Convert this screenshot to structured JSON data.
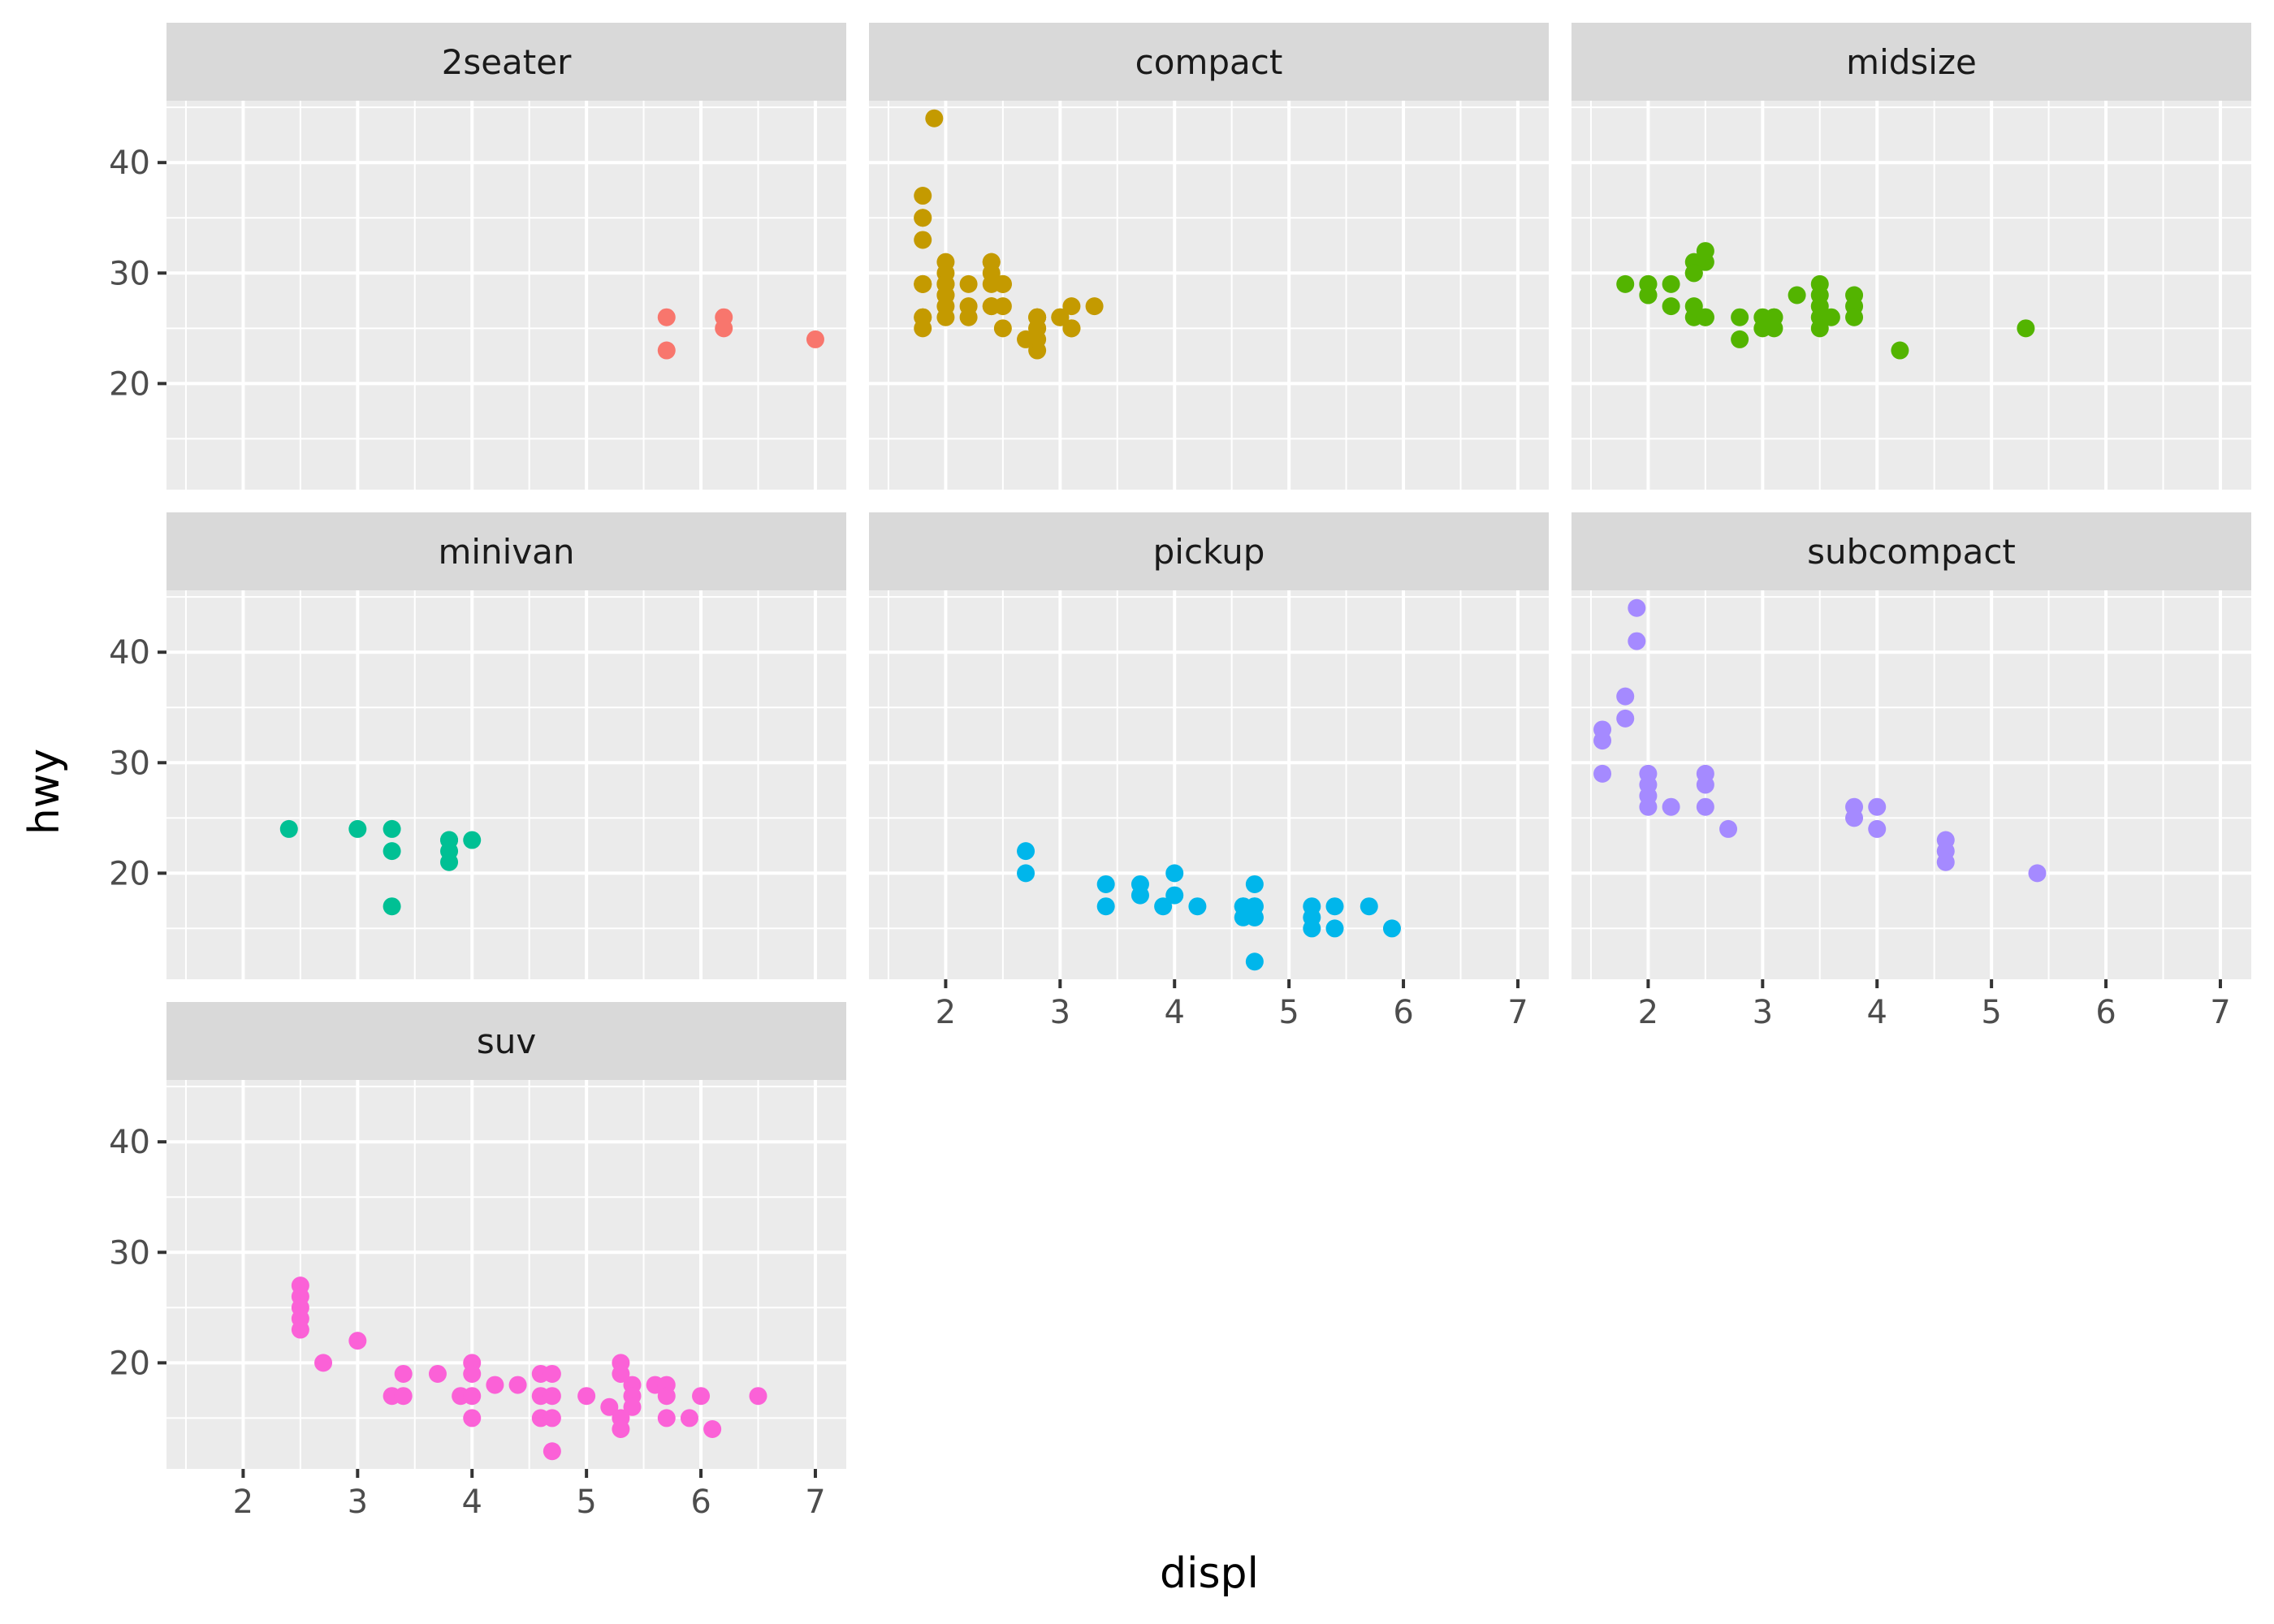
{
  "chart_data": {
    "type": "scatter",
    "title": "",
    "xlabel": "displ",
    "ylabel": "hwy",
    "facet_by": "class",
    "layout": "facet_wrap 3 columns",
    "grid": true,
    "legend": "none",
    "xlim": [
      1.33,
      7.27
    ],
    "ylim": [
      10.4,
      45.6
    ],
    "x_ticks": [
      2,
      3,
      4,
      5,
      6,
      7
    ],
    "y_ticks": [
      20,
      30,
      40
    ],
    "x_tick_labels": [
      "2",
      "3",
      "4",
      "5",
      "6",
      "7"
    ],
    "y_tick_labels": [
      "20",
      "30",
      "40"
    ],
    "panels": [
      {
        "label": "2seater",
        "color": "#F8766D",
        "points": [
          [
            5.7,
            26
          ],
          [
            5.7,
            23
          ],
          [
            6.2,
            26
          ],
          [
            6.2,
            25
          ],
          [
            7.0,
            24
          ]
        ]
      },
      {
        "label": "compact",
        "color": "#C49A00",
        "points": [
          [
            1.8,
            29
          ],
          [
            1.8,
            29
          ],
          [
            2.0,
            31
          ],
          [
            2.0,
            30
          ],
          [
            2.8,
            26
          ],
          [
            2.8,
            26
          ],
          [
            3.1,
            27
          ],
          [
            1.8,
            26
          ],
          [
            1.8,
            25
          ],
          [
            2.0,
            28
          ],
          [
            2.0,
            27
          ],
          [
            2.8,
            25
          ],
          [
            2.8,
            25
          ],
          [
            3.1,
            25
          ],
          [
            3.1,
            25
          ],
          [
            2.2,
            26
          ],
          [
            2.2,
            27
          ],
          [
            2.4,
            31
          ],
          [
            2.4,
            31
          ],
          [
            3.0,
            26
          ],
          [
            3.3,
            27
          ],
          [
            1.8,
            33
          ],
          [
            1.8,
            35
          ],
          [
            1.8,
            37
          ],
          [
            1.8,
            35
          ],
          [
            1.8,
            29
          ],
          [
            1.9,
            44
          ],
          [
            2.0,
            29
          ],
          [
            2.0,
            26
          ],
          [
            2.0,
            29
          ],
          [
            2.0,
            29
          ],
          [
            2.5,
            29
          ],
          [
            2.5,
            29
          ],
          [
            2.8,
            23
          ],
          [
            2.8,
            24
          ],
          [
            2.5,
            27
          ],
          [
            2.5,
            25
          ],
          [
            2.4,
            27
          ],
          [
            2.7,
            24
          ],
          [
            2.4,
            30
          ],
          [
            2.2,
            29
          ],
          [
            2.0,
            28
          ],
          [
            2.8,
            26
          ],
          [
            3.0,
            26
          ],
          [
            2.5,
            29
          ],
          [
            2.4,
            29
          ],
          [
            2.4,
            27
          ],
          [
            1.8,
            26
          ]
        ]
      },
      {
        "label": "midsize",
        "color": "#53B400",
        "points": [
          [
            1.8,
            29
          ],
          [
            2.0,
            28
          ],
          [
            2.0,
            29
          ],
          [
            2.2,
            29
          ],
          [
            2.4,
            30
          ],
          [
            2.4,
            31
          ],
          [
            2.5,
            31
          ],
          [
            2.5,
            32
          ],
          [
            2.2,
            27
          ],
          [
            2.4,
            26
          ],
          [
            2.4,
            27
          ],
          [
            2.5,
            26
          ],
          [
            2.5,
            26
          ],
          [
            2.8,
            26
          ],
          [
            2.8,
            24
          ],
          [
            3.0,
            26
          ],
          [
            3.0,
            25
          ],
          [
            3.1,
            26
          ],
          [
            3.1,
            25
          ],
          [
            3.1,
            26
          ],
          [
            3.3,
            28
          ],
          [
            3.5,
            29
          ],
          [
            3.5,
            28
          ],
          [
            3.5,
            27
          ],
          [
            3.5,
            26
          ],
          [
            3.5,
            25
          ],
          [
            3.6,
            26
          ],
          [
            3.8,
            28
          ],
          [
            3.8,
            27
          ],
          [
            3.8,
            26
          ],
          [
            4.2,
            23
          ],
          [
            5.3,
            25
          ],
          [
            2.0,
            29
          ],
          [
            2.0,
            28
          ],
          [
            2.4,
            30
          ]
        ]
      },
      {
        "label": "minivan",
        "color": "#00C094",
        "points": [
          [
            2.4,
            24
          ],
          [
            3.0,
            24
          ],
          [
            3.3,
            22
          ],
          [
            3.3,
            24
          ],
          [
            3.3,
            17
          ],
          [
            3.8,
            22
          ],
          [
            3.8,
            21
          ],
          [
            3.8,
            23
          ],
          [
            3.8,
            23
          ],
          [
            4.0,
            23
          ]
        ]
      },
      {
        "label": "pickup",
        "color": "#00B6EB",
        "points": [
          [
            2.7,
            20
          ],
          [
            2.7,
            22
          ],
          [
            3.4,
            17
          ],
          [
            3.4,
            19
          ],
          [
            3.7,
            18
          ],
          [
            3.7,
            19
          ],
          [
            3.9,
            17
          ],
          [
            4.0,
            20
          ],
          [
            4.0,
            18
          ],
          [
            4.2,
            17
          ],
          [
            4.6,
            17
          ],
          [
            4.6,
            16
          ],
          [
            4.6,
            17
          ],
          [
            4.7,
            12
          ],
          [
            4.7,
            17
          ],
          [
            4.7,
            16
          ],
          [
            4.7,
            19
          ],
          [
            4.7,
            16
          ],
          [
            4.7,
            17
          ],
          [
            5.2,
            15
          ],
          [
            5.2,
            16
          ],
          [
            5.2,
            17
          ],
          [
            5.4,
            15
          ],
          [
            5.4,
            17
          ],
          [
            5.7,
            17
          ],
          [
            5.9,
            15
          ]
        ]
      },
      {
        "label": "subcompact",
        "color": "#A58AFF",
        "points": [
          [
            1.6,
            33
          ],
          [
            1.6,
            32
          ],
          [
            1.6,
            29
          ],
          [
            1.8,
            34
          ],
          [
            1.8,
            36
          ],
          [
            1.9,
            44
          ],
          [
            1.9,
            41
          ],
          [
            2.0,
            29
          ],
          [
            2.0,
            28
          ],
          [
            2.0,
            27
          ],
          [
            2.0,
            26
          ],
          [
            2.2,
            26
          ],
          [
            2.5,
            29
          ],
          [
            2.5,
            28
          ],
          [
            2.5,
            26
          ],
          [
            2.7,
            24
          ],
          [
            3.8,
            26
          ],
          [
            3.8,
            25
          ],
          [
            4.0,
            26
          ],
          [
            4.0,
            24
          ],
          [
            4.6,
            23
          ],
          [
            4.6,
            22
          ],
          [
            4.6,
            21
          ],
          [
            5.4,
            20
          ]
        ]
      },
      {
        "label": "suv",
        "color": "#FB61D7",
        "points": [
          [
            2.5,
            27
          ],
          [
            2.5,
            26
          ],
          [
            2.5,
            25
          ],
          [
            2.5,
            24
          ],
          [
            2.5,
            23
          ],
          [
            2.7,
            20
          ],
          [
            3.0,
            22
          ],
          [
            3.3,
            17
          ],
          [
            3.4,
            17
          ],
          [
            3.4,
            19
          ],
          [
            3.7,
            19
          ],
          [
            3.9,
            17
          ],
          [
            4.0,
            20
          ],
          [
            4.0,
            19
          ],
          [
            4.0,
            17
          ],
          [
            4.0,
            15
          ],
          [
            4.2,
            18
          ],
          [
            4.4,
            18
          ],
          [
            4.6,
            19
          ],
          [
            4.6,
            17
          ],
          [
            4.6,
            15
          ],
          [
            4.7,
            19
          ],
          [
            4.7,
            17
          ],
          [
            4.7,
            15
          ],
          [
            4.7,
            12
          ],
          [
            5.0,
            17
          ],
          [
            5.2,
            16
          ],
          [
            5.3,
            20
          ],
          [
            5.3,
            19
          ],
          [
            5.3,
            15
          ],
          [
            5.3,
            14
          ],
          [
            5.4,
            18
          ],
          [
            5.4,
            17
          ],
          [
            5.4,
            16
          ],
          [
            5.6,
            18
          ],
          [
            5.7,
            18
          ],
          [
            5.7,
            17
          ],
          [
            5.7,
            15
          ],
          [
            5.9,
            15
          ],
          [
            6.0,
            17
          ],
          [
            6.1,
            14
          ],
          [
            6.5,
            17
          ]
        ]
      }
    ]
  }
}
